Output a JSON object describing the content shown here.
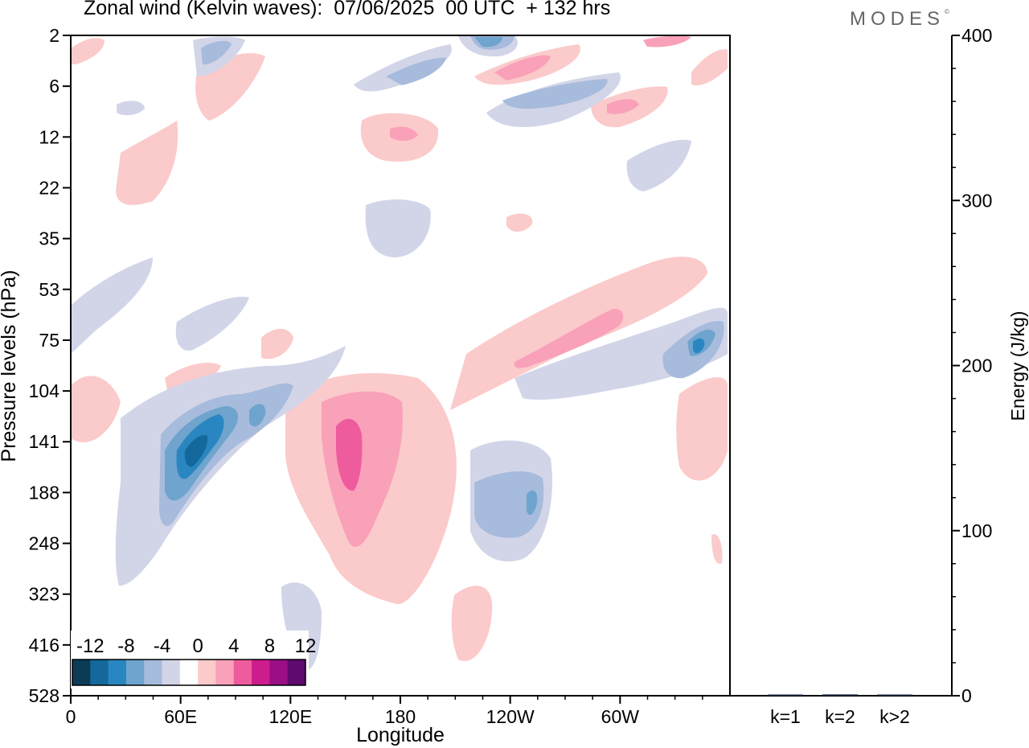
{
  "title": "Zonal wind (Kelvin waves):  07/06/2025  00 UTC  + 132 hrs",
  "logo": "MODES",
  "colors": {
    "scale": [
      "#0c3b58",
      "#14689c",
      "#2a86c0",
      "#6ea4cd",
      "#a7bbdc",
      "#d2d5e8",
      "#ffffff",
      "#fbcaca",
      "#f9a1b9",
      "#ef5c9e",
      "#cd1d8c",
      "#9a0e86",
      "#5e0a6e"
    ],
    "axis": "#000000"
  },
  "chart_data": [
    {
      "type": "heatmap",
      "title": "Zonal wind (Kelvin waves):  07/06/2025  00 UTC  + 132 hrs",
      "xlabel": "Longitude",
      "ylabel": "Pressure levels (hPa)",
      "x_ticks": [
        "0",
        "60E",
        "120E",
        "180",
        "120W",
        "60W"
      ],
      "x_tick_values": [
        0,
        60,
        120,
        180,
        240,
        300
      ],
      "xlim": [
        0,
        360
      ],
      "y_ticks": [
        "2",
        "6",
        "12",
        "22",
        "35",
        "53",
        "75",
        "104",
        "141",
        "188",
        "248",
        "323",
        "416",
        "528"
      ],
      "y_scale": "log",
      "colorbar": {
        "labels": [
          "-12",
          "-8",
          "-4",
          "0",
          "4",
          "8",
          "12"
        ],
        "levels": [
          -14,
          -12,
          -10,
          -8,
          -6,
          -4,
          -2,
          2,
          4,
          6,
          8,
          10,
          12,
          14
        ]
      },
      "features": [
        {
          "lon": 63,
          "p": 141,
          "value": -12
        },
        {
          "lon": 95,
          "p": 135,
          "value": -6
        },
        {
          "lon": 145,
          "p": 141,
          "value": 8
        },
        {
          "lon": 245,
          "p": 188,
          "value": -6
        },
        {
          "lon": 340,
          "p": 75,
          "value": -8
        },
        {
          "lon": 282,
          "p": 70,
          "value": 5
        },
        {
          "lon": 230,
          "p": 2,
          "value": -8
        },
        {
          "lon": 250,
          "p": 4,
          "value": 5
        },
        {
          "lon": 185,
          "p": 12,
          "value": 3
        },
        {
          "lon": 190,
          "p": 35,
          "value": -3
        }
      ]
    },
    {
      "type": "bar",
      "categories": [
        "k=1",
        "k=2",
        "k>2"
      ],
      "values": [
        0.5,
        0.8,
        0.4
      ],
      "ylabel": "Energy (J/kg)",
      "ylim": [
        0,
        400
      ],
      "y_ticks": [
        "0",
        "100",
        "200",
        "300",
        "400"
      ],
      "y_tick_values": [
        0,
        100,
        200,
        300,
        400
      ]
    }
  ]
}
